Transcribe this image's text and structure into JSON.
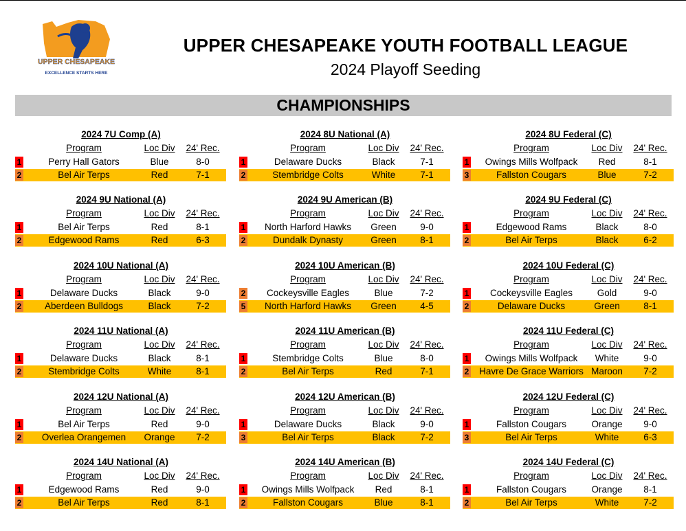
{
  "header": {
    "logo_text": "UPPER CHESAPEAKE",
    "logo_tagline": "EXCELLENCE STARTS HERE",
    "title": "UPPER CHESAPEAKE YOUTH FOOTBALL LEAGUE",
    "subtitle": "2024 Playoff Seeding"
  },
  "section": {
    "title": "CHAMPIONSHIPS"
  },
  "columns": {
    "program": "Program",
    "loc_div": "Loc Div",
    "record": "24' Rec."
  },
  "brackets": [
    {
      "title": "2024 7U Comp (A)",
      "teams": [
        {
          "seed": "1",
          "program": "Perry Hall Gators",
          "loc_div": "Blue",
          "record": "8-0"
        },
        {
          "seed": "2",
          "program": "Bel Air Terps",
          "loc_div": "Red",
          "record": "7-1"
        }
      ]
    },
    {
      "title": "2024 8U National (A)",
      "teams": [
        {
          "seed": "1",
          "program": "Delaware Ducks",
          "loc_div": "Black",
          "record": "7-1"
        },
        {
          "seed": "2",
          "program": "Stembridge Colts",
          "loc_div": "White",
          "record": "7-1"
        }
      ]
    },
    {
      "title": "2024 8U Federal (C)",
      "teams": [
        {
          "seed": "1",
          "program": "Owings Mills Wolfpack",
          "loc_div": "Red",
          "record": "8-1"
        },
        {
          "seed": "3",
          "program": "Fallston Cougars",
          "loc_div": "Blue",
          "record": "7-2"
        }
      ]
    },
    {
      "title": "2024 9U National (A)",
      "teams": [
        {
          "seed": "1",
          "program": "Bel Air Terps",
          "loc_div": "Red",
          "record": "8-1"
        },
        {
          "seed": "2",
          "program": "Edgewood Rams",
          "loc_div": "Red",
          "record": "6-3"
        }
      ]
    },
    {
      "title": "2024 9U American (B)",
      "teams": [
        {
          "seed": "1",
          "program": "North Harford Hawks",
          "loc_div": "Green",
          "record": "9-0"
        },
        {
          "seed": "2",
          "program": "Dundalk Dynasty",
          "loc_div": "Green",
          "record": "8-1"
        }
      ]
    },
    {
      "title": "2024 9U Federal (C)",
      "teams": [
        {
          "seed": "1",
          "program": "Edgewood Rams",
          "loc_div": "Black",
          "record": "8-0"
        },
        {
          "seed": "2",
          "program": "Bel Air Terps",
          "loc_div": "Black",
          "record": "6-2"
        }
      ]
    },
    {
      "title": "2024 10U National (A)",
      "teams": [
        {
          "seed": "1",
          "program": "Delaware Ducks",
          "loc_div": "Black",
          "record": "9-0"
        },
        {
          "seed": "2",
          "program": "Aberdeen Bulldogs",
          "loc_div": "Black",
          "record": "7-2"
        }
      ]
    },
    {
      "title": "2024 10U American (B)",
      "teams": [
        {
          "seed": "2",
          "program": "Cockeysville Eagles",
          "loc_div": "Blue",
          "record": "7-2"
        },
        {
          "seed": "5",
          "program": "North Harford Hawks",
          "loc_div": "Green",
          "record": "4-5"
        }
      ]
    },
    {
      "title": "2024 10U Federal (C)",
      "teams": [
        {
          "seed": "1",
          "program": "Cockeysville Eagles",
          "loc_div": "Gold",
          "record": "9-0"
        },
        {
          "seed": "2",
          "program": "Delaware Ducks",
          "loc_div": "Green",
          "record": "8-1"
        }
      ]
    },
    {
      "title": "2024 11U National (A)",
      "teams": [
        {
          "seed": "1",
          "program": "Delaware Ducks",
          "loc_div": "Black",
          "record": "8-1"
        },
        {
          "seed": "2",
          "program": "Stembridge Colts",
          "loc_div": "White",
          "record": "8-1"
        }
      ]
    },
    {
      "title": "2024 11U American (B)",
      "teams": [
        {
          "seed": "1",
          "program": "Stembridge Colts",
          "loc_div": "Blue",
          "record": "8-0"
        },
        {
          "seed": "2",
          "program": "Bel Air Terps",
          "loc_div": "Red",
          "record": "7-1"
        }
      ]
    },
    {
      "title": "2024 11U Federal (C)",
      "teams": [
        {
          "seed": "1",
          "program": "Owings Mills Wolfpack",
          "loc_div": "White",
          "record": "9-0"
        },
        {
          "seed": "2",
          "program": "Havre De Grace Warriors",
          "loc_div": "Maroon",
          "record": "7-2"
        }
      ]
    },
    {
      "title": "2024 12U National (A)",
      "teams": [
        {
          "seed": "1",
          "program": "Bel Air Terps",
          "loc_div": "Red",
          "record": "9-0"
        },
        {
          "seed": "2",
          "program": "Overlea Orangemen",
          "loc_div": "Orange",
          "record": "7-2"
        }
      ]
    },
    {
      "title": "2024 12U American (B)",
      "teams": [
        {
          "seed": "1",
          "program": "Delaware Ducks",
          "loc_div": "Black",
          "record": "9-0"
        },
        {
          "seed": "3",
          "program": "Bel Air Terps",
          "loc_div": "Black",
          "record": "7-2"
        }
      ]
    },
    {
      "title": "2024 12U Federal (C)",
      "teams": [
        {
          "seed": "1",
          "program": "Fallston Cougars",
          "loc_div": "Orange",
          "record": "9-0"
        },
        {
          "seed": "3",
          "program": "Bel Air Terps",
          "loc_div": "White",
          "record": "6-3"
        }
      ]
    },
    {
      "title": "2024 14U National (A)",
      "teams": [
        {
          "seed": "1",
          "program": "Edgewood Rams",
          "loc_div": "Red",
          "record": "9-0"
        },
        {
          "seed": "2",
          "program": "Bel Air Terps",
          "loc_div": "Red",
          "record": "8-1"
        }
      ]
    },
    {
      "title": "2024 14U American (B)",
      "teams": [
        {
          "seed": "1",
          "program": "Owings Mills Wolfpack",
          "loc_div": "Red",
          "record": "8-1"
        },
        {
          "seed": "2",
          "program": "Fallston Cougars",
          "loc_div": "Blue",
          "record": "8-1"
        }
      ]
    },
    {
      "title": "2024 14U Federal (C)",
      "teams": [
        {
          "seed": "1",
          "program": "Fallston Cougars",
          "loc_div": "Orange",
          "record": "8-1"
        },
        {
          "seed": "2",
          "program": "Bel Air Terps",
          "loc_div": "White",
          "record": "7-2"
        }
      ]
    }
  ],
  "colors": {
    "banner_bg": "#c8c8c8",
    "second_row_highlight": "#ffc000",
    "seed1_badge": "#ff0000",
    "seed_other_badge": "#ed7d31",
    "logo_orange": "#f39c1f",
    "logo_blue": "#1d3f8f"
  }
}
